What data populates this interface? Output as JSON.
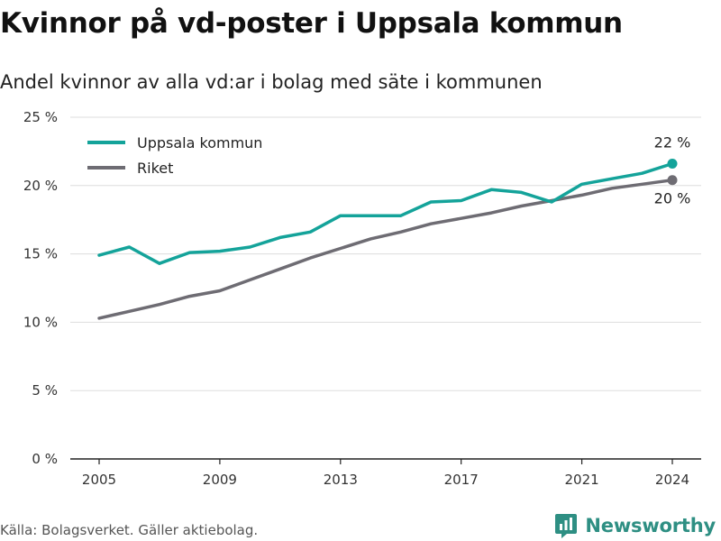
{
  "title": "Kvinnor på vd-poster i Uppsala kommun",
  "subtitle": "Andel kvinnor av alla vd:ar i bolag med säte i kommunen",
  "footer": {
    "source": "Källa: Bolagsverket. Gäller aktiebolag.",
    "brand": "Newsworthy"
  },
  "colors": {
    "uppsala": "#14a39a",
    "riket": "#6e6c73",
    "grid": "#dddddd",
    "axis": "#222222",
    "brand": "#2e8f83"
  },
  "chart_data": {
    "type": "line",
    "title": "Kvinnor på vd-poster i Uppsala kommun",
    "subtitle": "Andel kvinnor av alla vd:ar i bolag med säte i kommunen",
    "xlabel": "",
    "ylabel": "",
    "x": [
      2005,
      2006,
      2007,
      2008,
      2009,
      2010,
      2011,
      2012,
      2013,
      2014,
      2015,
      2016,
      2017,
      2018,
      2019,
      2020,
      2021,
      2022,
      2023,
      2024
    ],
    "xlim": [
      2005,
      2024
    ],
    "ylim": [
      0,
      25
    ],
    "x_ticks": [
      "2005",
      "2009",
      "2013",
      "2017",
      "2021",
      "2024"
    ],
    "x_tick_values": [
      2005,
      2009,
      2013,
      2017,
      2021,
      2024
    ],
    "y_ticks": [
      "0 %",
      "5 %",
      "10 %",
      "15 %",
      "20 %",
      "25 %"
    ],
    "y_tick_values": [
      0,
      5,
      10,
      15,
      20,
      25
    ],
    "grid": true,
    "legend_position": "top-left",
    "series": [
      {
        "name": "Uppsala kommun",
        "color_key": "uppsala",
        "values": [
          14.9,
          15.5,
          14.3,
          15.1,
          15.2,
          15.5,
          16.2,
          16.6,
          17.8,
          17.8,
          17.8,
          18.8,
          18.9,
          19.7,
          19.5,
          18.8,
          20.1,
          20.5,
          20.9,
          21.6
        ],
        "end_label": "22 %"
      },
      {
        "name": "Riket",
        "color_key": "riket",
        "values": [
          10.3,
          10.8,
          11.3,
          11.9,
          12.3,
          13.1,
          13.9,
          14.7,
          15.4,
          16.1,
          16.6,
          17.2,
          17.6,
          18.0,
          18.5,
          18.9,
          19.3,
          19.8,
          20.1,
          20.4
        ],
        "end_label": "20 %"
      }
    ]
  }
}
